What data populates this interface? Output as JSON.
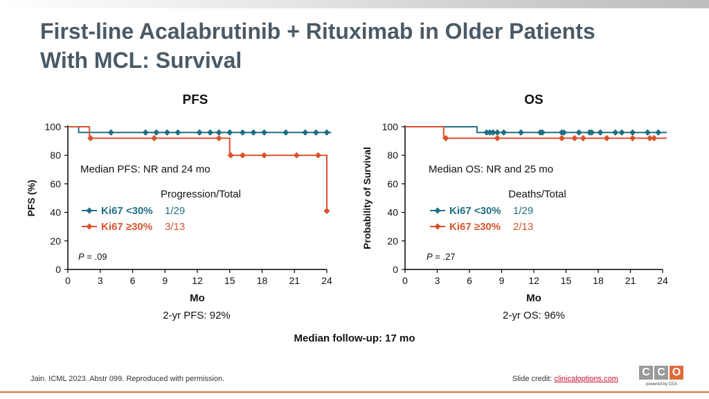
{
  "title_line1": "First-line Acalabrutinib + Rituximab in Older Patients",
  "title_line2": "With MCL: Survival",
  "follow_up": "Median follow-up: 17 mo",
  "footer": {
    "citation": "Jain. ICML 2023. Abstr 099. Reproduced with permission.",
    "credit_prefix": "Slide credit: ",
    "credit_link": "clinicaloptions.com",
    "logo_letters": [
      "C",
      "C",
      "O"
    ],
    "logo_sub": "powered by CEA"
  },
  "colors": {
    "teal": "#1f6e82",
    "orange": "#d9532b",
    "title": "#4a5a66"
  },
  "chart_data": [
    {
      "id": "pfs",
      "type": "line",
      "title": "PFS",
      "xlabel": "Mo",
      "ylabel": "PFS (%)",
      "xlim": [
        0,
        24
      ],
      "ylim": [
        0,
        100
      ],
      "xticks": [
        0,
        3,
        6,
        9,
        12,
        15,
        18,
        21,
        24
      ],
      "yticks": [
        0,
        20,
        40,
        60,
        80,
        100
      ],
      "median_text": "Median PFS: NR and 24 mo",
      "group_header": "Progression/Total",
      "p_label": "P",
      "p_value": " = .09",
      "caption": "2-yr PFS: 92%",
      "series": [
        {
          "name": "Ki67 <30%",
          "count": "1/29",
          "color": "#1f6e82",
          "steps": [
            [
              0,
              100
            ],
            [
              1,
              96
            ],
            [
              24.4,
              96
            ]
          ],
          "censors": [
            4,
            7.2,
            8.2,
            9.2,
            10.2,
            12.2,
            13.2,
            14,
            15,
            16.2,
            17.2,
            18.2,
            20.2,
            22,
            23,
            24
          ]
        },
        {
          "name": "Ki67 ≥30%",
          "count": "3/13",
          "color": "#d9532b",
          "steps": [
            [
              0,
              100
            ],
            [
              2,
              92
            ],
            [
              15,
              80
            ],
            [
              24,
              41
            ]
          ],
          "censors": [
            2.1,
            8,
            14,
            15.1,
            16.2,
            18.2,
            21.2,
            23.2,
            24
          ]
        }
      ]
    },
    {
      "id": "os",
      "type": "line",
      "title": "OS",
      "xlabel": "Mo",
      "ylabel": "Probability of Survival",
      "xlim": [
        0,
        24
      ],
      "ylim": [
        0,
        100
      ],
      "xticks": [
        0,
        3,
        6,
        9,
        12,
        15,
        18,
        21,
        24
      ],
      "yticks": [
        0,
        20,
        40,
        60,
        80,
        100
      ],
      "median_text": "Median OS: NR and 25 mo",
      "group_header": "Deaths/Total",
      "p_label": "P",
      "p_value": " = .27",
      "caption": "2-yr OS: 96%",
      "series": [
        {
          "name": "Ki67 <30%",
          "count": "1/29",
          "color": "#1f6e82",
          "steps": [
            [
              0,
              100
            ],
            [
              6.7,
              96
            ],
            [
              24.4,
              96
            ]
          ],
          "censors": [
            7.6,
            7.9,
            8.2,
            8.6,
            9.2,
            10.8,
            12.6,
            12.8,
            14.6,
            14.8,
            16.2,
            17.2,
            17.4,
            18.2,
            19.6,
            20.2,
            21.2,
            22.6,
            23.6
          ]
        },
        {
          "name": "Ki67 ≥30%",
          "count": "2/13",
          "color": "#d9532b",
          "steps": [
            [
              0,
              100
            ],
            [
              3.6,
              92
            ],
            [
              24.4,
              92
            ]
          ],
          "censors": [
            3.8,
            8.6,
            14.6,
            15.8,
            16.6,
            18.8,
            21.2,
            22.8,
            23.2
          ]
        }
      ]
    }
  ]
}
